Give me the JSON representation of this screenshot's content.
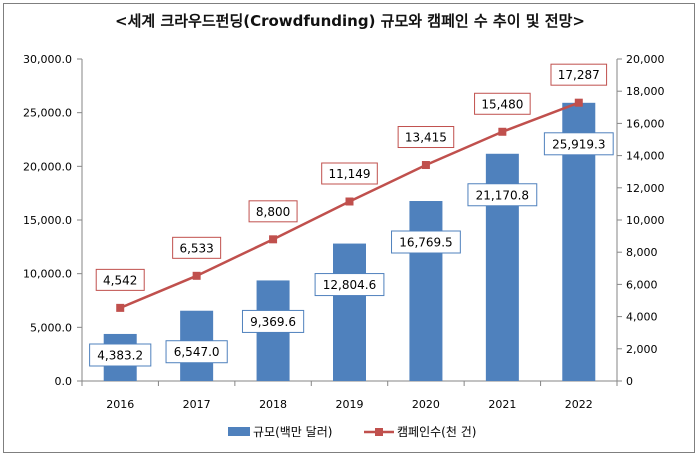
{
  "chart_data": {
    "type": "bar+line",
    "title": "<세계 크라우드펀딩(Crowdfunding) 규모와 캠페인 수 추이 및 전망>",
    "categories": [
      "2016",
      "2017",
      "2018",
      "2019",
      "2020",
      "2021",
      "2022"
    ],
    "series": [
      {
        "name": "규모(백만 달러)",
        "type": "bar",
        "axis": "left",
        "color": "#4f81bd",
        "values": [
          4383.2,
          6547.0,
          9369.6,
          12804.6,
          16769.5,
          21170.8,
          25919.3
        ],
        "labels": [
          "4,383.2",
          "6,547.0",
          "9,369.6",
          "12,804.6",
          "16,769.5",
          "21,170.8",
          "25,919.3"
        ]
      },
      {
        "name": "캠페인수(천 건)",
        "type": "line",
        "axis": "right",
        "color": "#c0504d",
        "values": [
          4542,
          6533,
          8800,
          11149,
          13415,
          15480,
          17287
        ],
        "labels": [
          "4,542",
          "6,533",
          "8,800",
          "11,149",
          "13,415",
          "15,480",
          "17,287"
        ]
      }
    ],
    "y_left": {
      "range": [
        0,
        30000
      ],
      "ticks": [
        "0.0",
        "5,000.0",
        "10,000.0",
        "15,000.0",
        "20,000.0",
        "25,000.0",
        "30,000.0"
      ]
    },
    "y_right": {
      "range": [
        0,
        20000
      ],
      "ticks": [
        "0",
        "2,000",
        "4,000",
        "6,000",
        "8,000",
        "10,000",
        "12,000",
        "14,000",
        "16,000",
        "18,000",
        "20,000"
      ]
    },
    "grid": false,
    "legend": "bottom"
  }
}
